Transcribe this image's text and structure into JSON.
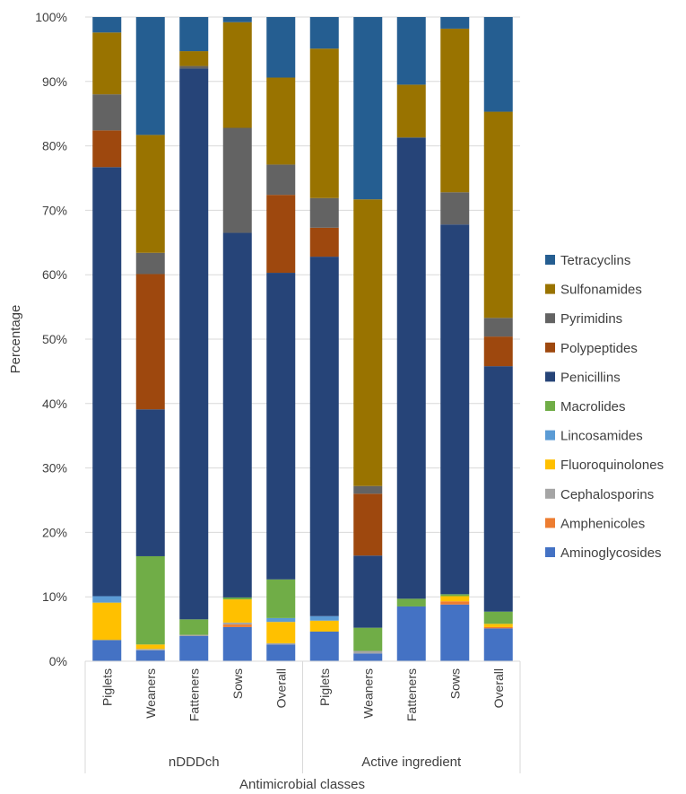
{
  "chart_data": {
    "type": "bar",
    "stacked": "percent",
    "ylabel": "Percentage",
    "xlabel": "Antimicrobial classes",
    "ylim": [
      0,
      100
    ],
    "yticks": [
      "0%",
      "10%",
      "20%",
      "30%",
      "40%",
      "50%",
      "60%",
      "70%",
      "80%",
      "90%",
      "100%"
    ],
    "groups": [
      {
        "label": "nDDDch",
        "categories": [
          "Piglets",
          "Weaners",
          "Fatteners",
          "Sows",
          "Overall"
        ]
      },
      {
        "label": "Active ingredient",
        "categories": [
          "Piglets",
          "Weaners",
          "Fatteners",
          "Sows",
          "Overall"
        ]
      }
    ],
    "legend_position": "right",
    "series": [
      {
        "name": "Aminoglycosides",
        "color": "#4472C4",
        "values": [
          3.3,
          1.7,
          3.9,
          5.3,
          2.6,
          4.6,
          1.2,
          8.5,
          8.8,
          5.1
        ]
      },
      {
        "name": "Amphenicoles",
        "color": "#ED7D31",
        "values": [
          0.0,
          0.0,
          0.0,
          0.4,
          0.0,
          0.0,
          0.0,
          0.0,
          0.5,
          0.2
        ]
      },
      {
        "name": "Cephalosporins",
        "color": "#A5A5A5",
        "values": [
          0.0,
          0.2,
          0.2,
          0.3,
          0.2,
          0.0,
          0.4,
          0.0,
          0.0,
          0.0
        ]
      },
      {
        "name": "Fluoroquinolones",
        "color": "#FFC000",
        "values": [
          5.8,
          0.7,
          0.0,
          3.6,
          3.3,
          1.7,
          0.0,
          0.0,
          0.8,
          0.5
        ]
      },
      {
        "name": "Lincosamides",
        "color": "#5B9BD5",
        "values": [
          1.0,
          0.0,
          0.0,
          0.0,
          0.6,
          0.7,
          0.0,
          0.0,
          0.0,
          0.0
        ]
      },
      {
        "name": "Macrolides",
        "color": "#70AD47",
        "values": [
          0.0,
          13.7,
          2.4,
          0.3,
          6.0,
          0.0,
          3.6,
          1.2,
          0.3,
          1.9
        ]
      },
      {
        "name": "Penicillins",
        "color": "#264478",
        "values": [
          66.6,
          22.8,
          85.5,
          56.6,
          47.6,
          55.8,
          11.2,
          71.6,
          57.4,
          38.1
        ]
      },
      {
        "name": "Polypeptides",
        "color": "#9E480E",
        "values": [
          5.7,
          21.0,
          0.0,
          0.0,
          12.1,
          4.5,
          9.6,
          0.0,
          0.0,
          4.6
        ]
      },
      {
        "name": "Pyrimidins",
        "color": "#636363",
        "values": [
          5.6,
          3.3,
          0.4,
          16.3,
          4.7,
          4.6,
          1.2,
          0.0,
          5.0,
          2.9
        ]
      },
      {
        "name": "Sulfonamides",
        "color": "#997300",
        "values": [
          9.6,
          18.3,
          2.3,
          16.4,
          13.5,
          23.2,
          44.5,
          8.2,
          25.4,
          32.0
        ]
      },
      {
        "name": "Tetracyclins",
        "color": "#255E91",
        "values": [
          2.4,
          18.3,
          5.3,
          0.8,
          9.4,
          4.9,
          28.3,
          10.5,
          1.8,
          14.7
        ]
      }
    ]
  }
}
